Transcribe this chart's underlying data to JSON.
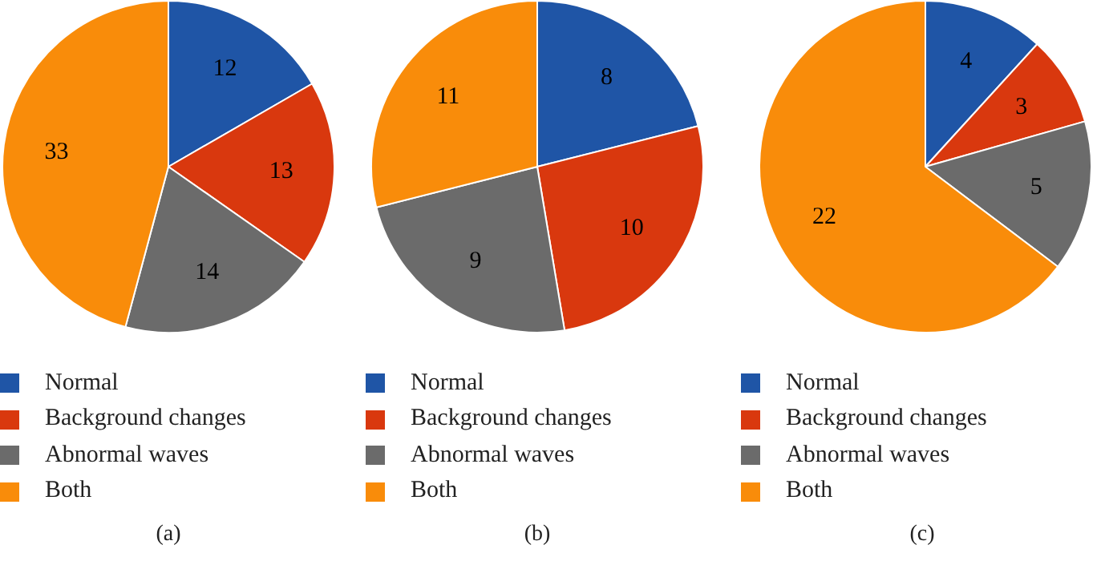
{
  "chart_data": [
    {
      "type": "pie",
      "title": "(a)",
      "categories": [
        "Normal",
        "Background changes",
        "Abnormal waves",
        "Both"
      ],
      "values": [
        12,
        13,
        14,
        33
      ],
      "colors": [
        "#1f55a6",
        "#d9380e",
        "#6b6b6b",
        "#f98c0a"
      ],
      "data_labels": true,
      "legend": "bottom"
    },
    {
      "type": "pie",
      "title": "(b)",
      "categories": [
        "Normal",
        "Background changes",
        "Abnormal waves",
        "Both"
      ],
      "values": [
        8,
        10,
        9,
        11
      ],
      "colors": [
        "#1f55a6",
        "#d9380e",
        "#6b6b6b",
        "#f98c0a"
      ],
      "data_labels": true,
      "legend": "bottom"
    },
    {
      "type": "pie",
      "title": "(c)",
      "categories": [
        "Normal",
        "Background changes",
        "Abnormal waves",
        "Both"
      ],
      "values": [
        4,
        3,
        5,
        22
      ],
      "colors": [
        "#1f55a6",
        "#d9380e",
        "#6b6b6b",
        "#f98c0a"
      ],
      "data_labels": true,
      "legend": "bottom"
    }
  ]
}
